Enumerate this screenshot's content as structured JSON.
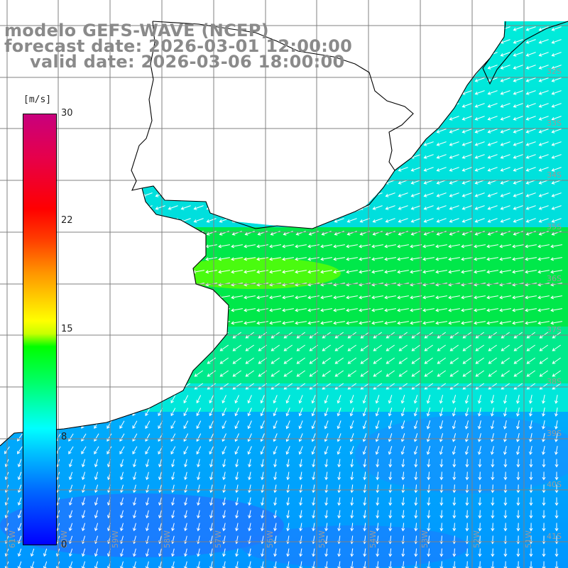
{
  "title": {
    "model": "modelo GEFS-WAVE (NCEP)",
    "forecast": "forecast date: 2026-03-01 12:00:00",
    "valid": "valid date: 2026-03-06 18:00:00"
  },
  "legend": {
    "unit": "[m/s]",
    "ticks": [
      "30",
      "22",
      "15",
      "8",
      "0"
    ],
    "range": [
      0,
      30
    ]
  },
  "lat_labels": [
    "32S",
    "33S",
    "34S",
    "35S",
    "36S",
    "37S",
    "38S",
    "39S",
    "40S",
    "41S"
  ],
  "lon_labels": [
    "61W",
    "60W",
    "59W",
    "58W",
    "57W",
    "56W",
    "55W",
    "54W",
    "53W",
    "52W",
    "51W"
  ],
  "colors": {
    "land": "#ffffff",
    "coastline": "#000000",
    "grid": "#808080",
    "arrow": "#ffffff",
    "title": "#8a8a8a"
  },
  "fields": {
    "variable": "wind speed",
    "arrows": "wind direction vectors"
  }
}
